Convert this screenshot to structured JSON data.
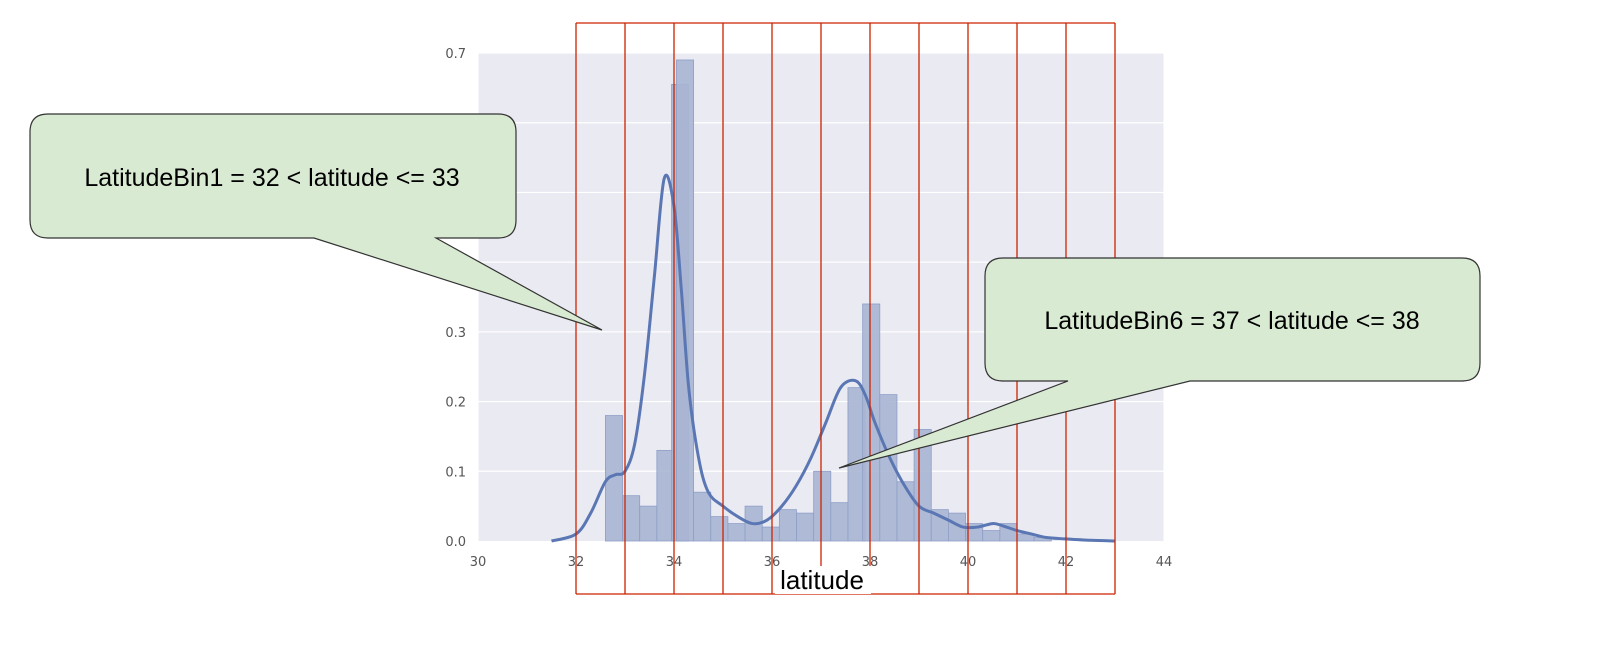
{
  "chart_data": {
    "type": "bar",
    "xlabel": "latitude",
    "ylabel": "",
    "xlim": [
      30,
      44
    ],
    "ylim": [
      0,
      0.7
    ],
    "x_ticks": [
      30,
      32,
      34,
      36,
      38,
      40,
      42,
      44
    ],
    "y_ticks": [
      0.0,
      0.1,
      0.2,
      0.3,
      0.7
    ],
    "y_tick_labels": [
      "0.0",
      "0.1",
      "0.2",
      "0.3",
      "0.7"
    ],
    "grid": true,
    "histogram": {
      "bin_width": 0.35,
      "bins": [
        {
          "start": 32.6,
          "value": 0.18
        },
        {
          "start": 32.95,
          "value": 0.065
        },
        {
          "start": 33.3,
          "value": 0.05
        },
        {
          "start": 33.65,
          "value": 0.13
        },
        {
          "start": 33.95,
          "value": 0.655
        },
        {
          "start": 34.05,
          "value": 0.69
        },
        {
          "start": 34.4,
          "value": 0.07
        },
        {
          "start": 34.75,
          "value": 0.035
        },
        {
          "start": 35.1,
          "value": 0.025
        },
        {
          "start": 35.45,
          "value": 0.05
        },
        {
          "start": 35.8,
          "value": 0.02
        },
        {
          "start": 36.15,
          "value": 0.045
        },
        {
          "start": 36.5,
          "value": 0.04
        },
        {
          "start": 36.85,
          "value": 0.1
        },
        {
          "start": 37.2,
          "value": 0.055
        },
        {
          "start": 37.55,
          "value": 0.22
        },
        {
          "start": 37.85,
          "value": 0.34
        },
        {
          "start": 38.2,
          "value": 0.21
        },
        {
          "start": 38.55,
          "value": 0.085
        },
        {
          "start": 38.9,
          "value": 0.16
        },
        {
          "start": 39.25,
          "value": 0.045
        },
        {
          "start": 39.6,
          "value": 0.04
        },
        {
          "start": 39.95,
          "value": 0.025
        },
        {
          "start": 40.3,
          "value": 0.015
        },
        {
          "start": 40.65,
          "value": 0.025
        },
        {
          "start": 41.0,
          "value": 0.01
        },
        {
          "start": 41.35,
          "value": 0.005
        }
      ]
    },
    "kde": {
      "x": [
        31.5,
        32.0,
        32.3,
        32.6,
        32.8,
        33.0,
        33.2,
        33.4,
        33.6,
        33.8,
        34.0,
        34.15,
        34.3,
        34.5,
        34.7,
        35.0,
        35.3,
        35.6,
        35.9,
        36.2,
        36.5,
        36.8,
        37.1,
        37.4,
        37.7,
        37.9,
        38.1,
        38.4,
        38.7,
        39.0,
        39.3,
        39.6,
        39.9,
        40.2,
        40.5,
        40.7,
        41.0,
        41.3,
        41.6,
        42.0,
        42.5,
        43.0
      ],
      "y": [
        0.0,
        0.01,
        0.04,
        0.085,
        0.095,
        0.1,
        0.14,
        0.24,
        0.38,
        0.52,
        0.48,
        0.36,
        0.22,
        0.12,
        0.07,
        0.05,
        0.035,
        0.025,
        0.03,
        0.05,
        0.08,
        0.12,
        0.17,
        0.22,
        0.23,
        0.21,
        0.17,
        0.12,
        0.08,
        0.05,
        0.04,
        0.03,
        0.02,
        0.02,
        0.025,
        0.022,
        0.015,
        0.01,
        0.005,
        0.003,
        0.001,
        0.0
      ]
    },
    "bin_boundaries": [
      32,
      33,
      34,
      35,
      36,
      37,
      38,
      39,
      40,
      41,
      42,
      43
    ],
    "annotations": [
      {
        "text": "LatitudeBin1 = 32 < latitude <= 33",
        "points_to": {
          "x": 32.55,
          "y": 0.3
        }
      },
      {
        "text": "LatitudeBin6 = 37 < latitude <= 38",
        "points_to": {
          "x": 37.35,
          "y": 0.1
        }
      }
    ],
    "colors": {
      "plot_background": "#eaeaf2",
      "gridline": "#ffffff",
      "bar_fill": "#a8b5d3",
      "bar_stroke": "#8e9fc7",
      "kde_line": "#5a77b4",
      "bin_boundary": "#cc2200",
      "callout_fill": "#d9ead3",
      "callout_stroke": "#333333"
    }
  }
}
